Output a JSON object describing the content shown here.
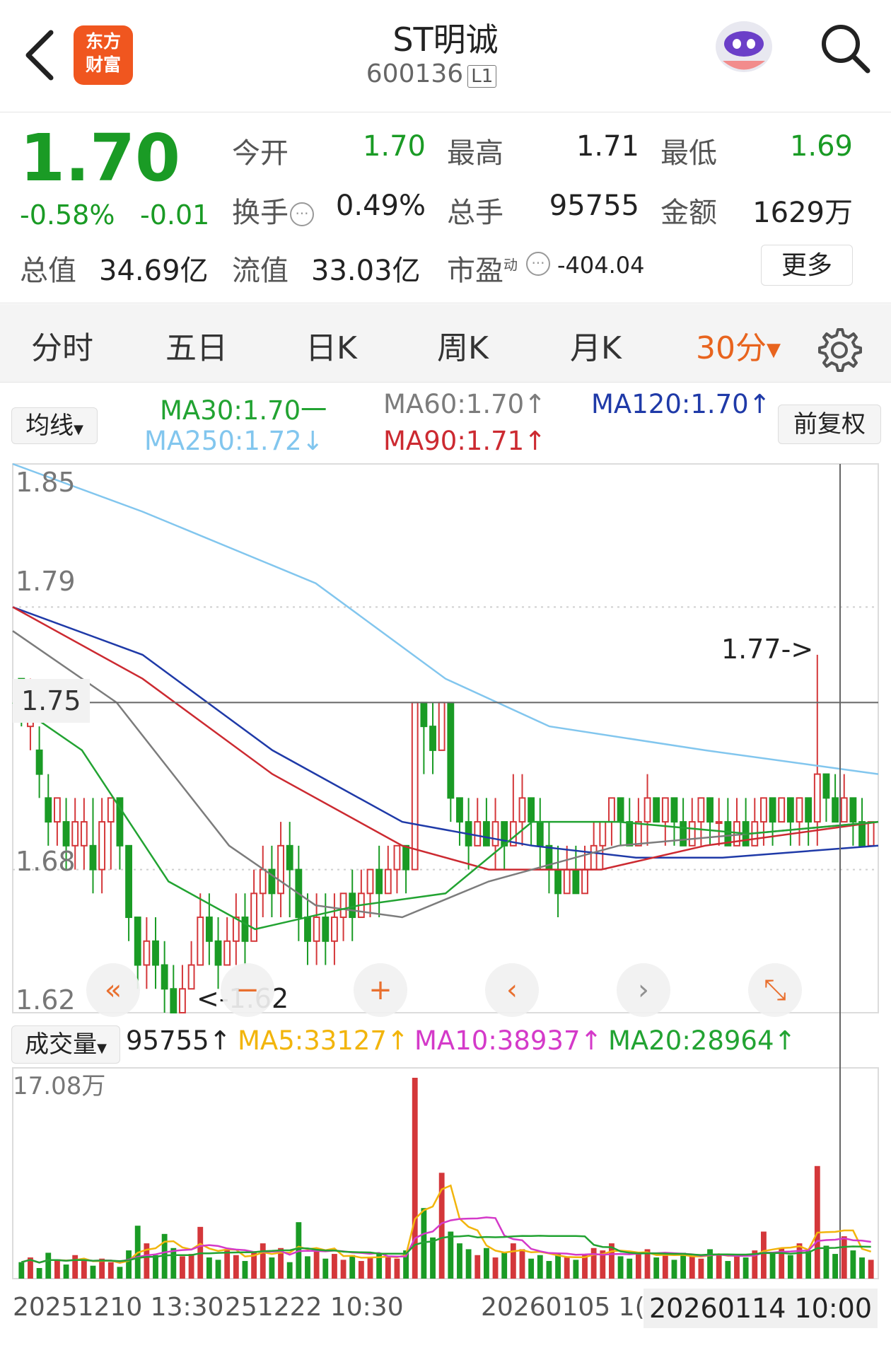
{
  "header": {
    "logo_line1": "东方",
    "logo_line2": "财富",
    "title": "ST明诚",
    "code": "600136",
    "level": "L1"
  },
  "quote": {
    "price": "1.70",
    "change_pct": "-0.58%",
    "change": "-0.01",
    "open_label": "今开",
    "open": "1.70",
    "high_label": "最高",
    "high": "1.71",
    "low_label": "最低",
    "low": "1.69",
    "turnover_label": "换手",
    "turnover": "0.49%",
    "volume_label": "总手",
    "volume": "95755",
    "amount_label": "金额",
    "amount": "1629万",
    "total_value_label": "总值",
    "total_value": "34.69亿",
    "float_value_label": "流值",
    "float_value": "33.03亿",
    "pe_label": "市盈",
    "pe_sup": "动",
    "pe": "-404.04",
    "more_label": "更多",
    "colors": {
      "down": "#1a9b25",
      "up": "#d4373a",
      "accent": "#e8641e"
    }
  },
  "tabs": {
    "items": [
      "分时",
      "五日",
      "日K",
      "周K",
      "月K"
    ],
    "active": "30分"
  },
  "ma_legend": {
    "selector": "均线",
    "adjust": "前复权",
    "ma30": "MA30:1.70一",
    "ma60": "MA60:1.70↑",
    "ma120": "MA120:1.70↑",
    "ma250": "MA250:1.72↓",
    "ma90": "MA90:1.71↑",
    "colors": {
      "ma30": "#22a332",
      "ma60": "#7c7c7c",
      "ma120": "#1f3aa8",
      "ma250": "#82c6ee",
      "ma90": "#cc2a31"
    }
  },
  "volume_legend": {
    "selector": "成交量",
    "vol": "95755↑",
    "ma5": "MA5:33127↑",
    "ma10": "MA10:38937↑",
    "ma20": "MA20:28964↑",
    "colors": {
      "ma5": "#f2b50c",
      "ma10": "#d43ac9",
      "ma20": "#22a332"
    }
  },
  "chart_data": {
    "type": "candlestick",
    "interval": "30分",
    "price_ticks": [
      "1.85",
      "1.79",
      "1.75",
      "1.68",
      "1.62"
    ],
    "crosshair_label": "1.75",
    "max_label": "1.77->",
    "min_label": "<-1.62",
    "ylim": [
      1.62,
      1.85
    ],
    "volume_max_label": "17.08万",
    "x_labels": [
      "20251210 13:30",
      "251222 10:30",
      "20260105 1(",
      "20260114 10:00"
    ],
    "candles": [
      [
        1.76,
        1.75,
        1.76,
        1.74
      ],
      [
        1.74,
        1.75,
        1.76,
        1.73
      ],
      [
        1.73,
        1.72,
        1.74,
        1.71
      ],
      [
        1.71,
        1.7,
        1.72,
        1.69
      ],
      [
        1.7,
        1.71,
        1.71,
        1.69
      ],
      [
        1.7,
        1.69,
        1.71,
        1.68
      ],
      [
        1.69,
        1.7,
        1.71,
        1.68
      ],
      [
        1.69,
        1.7,
        1.71,
        1.68
      ],
      [
        1.69,
        1.68,
        1.71,
        1.67
      ],
      [
        1.68,
        1.7,
        1.71,
        1.67
      ],
      [
        1.7,
        1.71,
        1.71,
        1.68
      ],
      [
        1.71,
        1.69,
        1.71,
        1.68
      ],
      [
        1.69,
        1.66,
        1.69,
        1.65
      ],
      [
        1.66,
        1.64,
        1.66,
        1.63
      ],
      [
        1.64,
        1.65,
        1.66,
        1.63
      ],
      [
        1.65,
        1.64,
        1.66,
        1.63
      ],
      [
        1.64,
        1.63,
        1.65,
        1.62
      ],
      [
        1.63,
        1.62,
        1.64,
        1.62
      ],
      [
        1.62,
        1.63,
        1.64,
        1.62
      ],
      [
        1.63,
        1.64,
        1.65,
        1.63
      ],
      [
        1.64,
        1.66,
        1.67,
        1.64
      ],
      [
        1.66,
        1.65,
        1.67,
        1.64
      ],
      [
        1.65,
        1.64,
        1.66,
        1.63
      ],
      [
        1.64,
        1.65,
        1.66,
        1.64
      ],
      [
        1.65,
        1.66,
        1.67,
        1.64
      ],
      [
        1.66,
        1.65,
        1.67,
        1.64
      ],
      [
        1.65,
        1.67,
        1.68,
        1.65
      ],
      [
        1.67,
        1.68,
        1.69,
        1.66
      ],
      [
        1.68,
        1.67,
        1.69,
        1.66
      ],
      [
        1.67,
        1.69,
        1.7,
        1.66
      ],
      [
        1.69,
        1.68,
        1.7,
        1.66
      ],
      [
        1.68,
        1.66,
        1.69,
        1.65
      ],
      [
        1.66,
        1.65,
        1.67,
        1.64
      ],
      [
        1.65,
        1.66,
        1.67,
        1.64
      ],
      [
        1.66,
        1.65,
        1.67,
        1.64
      ],
      [
        1.65,
        1.66,
        1.67,
        1.64
      ],
      [
        1.66,
        1.67,
        1.67,
        1.65
      ],
      [
        1.67,
        1.66,
        1.68,
        1.65
      ],
      [
        1.66,
        1.67,
        1.68,
        1.66
      ],
      [
        1.67,
        1.68,
        1.68,
        1.66
      ],
      [
        1.68,
        1.67,
        1.69,
        1.66
      ],
      [
        1.67,
        1.68,
        1.69,
        1.67
      ],
      [
        1.68,
        1.69,
        1.69,
        1.67
      ],
      [
        1.69,
        1.68,
        1.69,
        1.67
      ],
      [
        1.68,
        1.75,
        1.75,
        1.68
      ],
      [
        1.75,
        1.74,
        1.75,
        1.72
      ],
      [
        1.74,
        1.73,
        1.75,
        1.72
      ],
      [
        1.73,
        1.75,
        1.75,
        1.73
      ],
      [
        1.75,
        1.71,
        1.75,
        1.7
      ],
      [
        1.71,
        1.7,
        1.71,
        1.69
      ],
      [
        1.7,
        1.69,
        1.71,
        1.68
      ],
      [
        1.69,
        1.7,
        1.71,
        1.69
      ],
      [
        1.7,
        1.69,
        1.71,
        1.69
      ],
      [
        1.69,
        1.7,
        1.71,
        1.68
      ],
      [
        1.7,
        1.69,
        1.7,
        1.68
      ],
      [
        1.69,
        1.7,
        1.72,
        1.69
      ],
      [
        1.7,
        1.71,
        1.72,
        1.69
      ],
      [
        1.71,
        1.7,
        1.71,
        1.69
      ],
      [
        1.7,
        1.69,
        1.71,
        1.68
      ],
      [
        1.69,
        1.68,
        1.7,
        1.67
      ],
      [
        1.68,
        1.67,
        1.69,
        1.66
      ],
      [
        1.67,
        1.68,
        1.69,
        1.67
      ],
      [
        1.68,
        1.67,
        1.69,
        1.67
      ],
      [
        1.67,
        1.68,
        1.69,
        1.67
      ],
      [
        1.68,
        1.69,
        1.7,
        1.68
      ],
      [
        1.69,
        1.7,
        1.7,
        1.68
      ],
      [
        1.7,
        1.71,
        1.71,
        1.69
      ],
      [
        1.71,
        1.7,
        1.71,
        1.69
      ],
      [
        1.7,
        1.69,
        1.71,
        1.69
      ],
      [
        1.69,
        1.7,
        1.71,
        1.69
      ],
      [
        1.7,
        1.71,
        1.72,
        1.69
      ],
      [
        1.71,
        1.7,
        1.71,
        1.7
      ],
      [
        1.7,
        1.71,
        1.71,
        1.69
      ],
      [
        1.71,
        1.7,
        1.71,
        1.69
      ],
      [
        1.7,
        1.69,
        1.71,
        1.69
      ],
      [
        1.69,
        1.7,
        1.71,
        1.69
      ],
      [
        1.7,
        1.71,
        1.71,
        1.69
      ],
      [
        1.71,
        1.7,
        1.71,
        1.69
      ],
      [
        1.7,
        1.7,
        1.71,
        1.69
      ],
      [
        1.7,
        1.69,
        1.71,
        1.69
      ],
      [
        1.69,
        1.7,
        1.71,
        1.69
      ],
      [
        1.7,
        1.69,
        1.71,
        1.69
      ],
      [
        1.69,
        1.7,
        1.71,
        1.69
      ],
      [
        1.7,
        1.71,
        1.71,
        1.69
      ],
      [
        1.71,
        1.7,
        1.71,
        1.69
      ],
      [
        1.7,
        1.71,
        1.71,
        1.7
      ],
      [
        1.71,
        1.7,
        1.71,
        1.69
      ],
      [
        1.7,
        1.71,
        1.71,
        1.69
      ],
      [
        1.71,
        1.7,
        1.71,
        1.69
      ],
      [
        1.7,
        1.72,
        1.77,
        1.69
      ],
      [
        1.72,
        1.71,
        1.72,
        1.7
      ],
      [
        1.71,
        1.7,
        1.72,
        1.7
      ],
      [
        1.7,
        1.71,
        1.72,
        1.7
      ],
      [
        1.71,
        1.7,
        1.71,
        1.69
      ],
      [
        1.7,
        1.69,
        1.71,
        1.69
      ],
      [
        1.69,
        1.7,
        1.7,
        1.69
      ]
    ],
    "ma_lines": {
      "ma250": [
        [
          0,
          1.85
        ],
        [
          0.15,
          1.83
        ],
        [
          0.35,
          1.8
        ],
        [
          0.5,
          1.76
        ],
        [
          0.62,
          1.74
        ],
        [
          0.8,
          1.73
        ],
        [
          1,
          1.72
        ]
      ],
      "ma120": [
        [
          0,
          1.79
        ],
        [
          0.15,
          1.77
        ],
        [
          0.3,
          1.73
        ],
        [
          0.45,
          1.7
        ],
        [
          0.6,
          1.69
        ],
        [
          0.72,
          1.685
        ],
        [
          0.82,
          1.685
        ],
        [
          1,
          1.69
        ]
      ],
      "ma90": [
        [
          0,
          1.79
        ],
        [
          0.15,
          1.76
        ],
        [
          0.3,
          1.72
        ],
        [
          0.45,
          1.69
        ],
        [
          0.55,
          1.68
        ],
        [
          0.68,
          1.68
        ],
        [
          0.8,
          1.69
        ],
        [
          1,
          1.7
        ]
      ],
      "ma60": [
        [
          0,
          1.78
        ],
        [
          0.12,
          1.75
        ],
        [
          0.25,
          1.69
        ],
        [
          0.35,
          1.665
        ],
        [
          0.45,
          1.66
        ],
        [
          0.55,
          1.675
        ],
        [
          0.7,
          1.69
        ],
        [
          1,
          1.7
        ]
      ],
      "ma30": [
        [
          0,
          1.75
        ],
        [
          0.08,
          1.73
        ],
        [
          0.18,
          1.675
        ],
        [
          0.28,
          1.655
        ],
        [
          0.4,
          1.665
        ],
        [
          0.5,
          1.67
        ],
        [
          0.6,
          1.7
        ],
        [
          0.7,
          1.7
        ],
        [
          0.85,
          1.695
        ],
        [
          1,
          1.7
        ]
      ]
    },
    "volume_max": 170800,
    "volumes": [
      14000,
      18000,
      9000,
      22000,
      16000,
      12000,
      20000,
      15000,
      11000,
      17000,
      14000,
      10000,
      24000,
      45000,
      30000,
      20000,
      38000,
      26000,
      19000,
      21000,
      44000,
      18000,
      16000,
      25000,
      20000,
      15000,
      22000,
      30000,
      18000,
      26000,
      14000,
      48000,
      19000,
      23000,
      17000,
      21000,
      16000,
      20000,
      15000,
      18000,
      22000,
      19000,
      17000,
      24000,
      170800,
      60000,
      35000,
      90000,
      40000,
      30000,
      25000,
      20000,
      26000,
      18000,
      22000,
      30000,
      25000,
      17000,
      20000,
      15000,
      22000,
      18000,
      16000,
      20000,
      26000,
      24000,
      30000,
      19000,
      17000,
      21000,
      25000,
      18000,
      20000,
      16000,
      22000,
      19000,
      17000,
      25000,
      21000,
      15000,
      20000,
      18000,
      24000,
      40000,
      22000,
      26000,
      20000,
      30000,
      24000,
      95755,
      28000,
      21000,
      36000,
      24000,
      18000,
      16000
    ]
  }
}
